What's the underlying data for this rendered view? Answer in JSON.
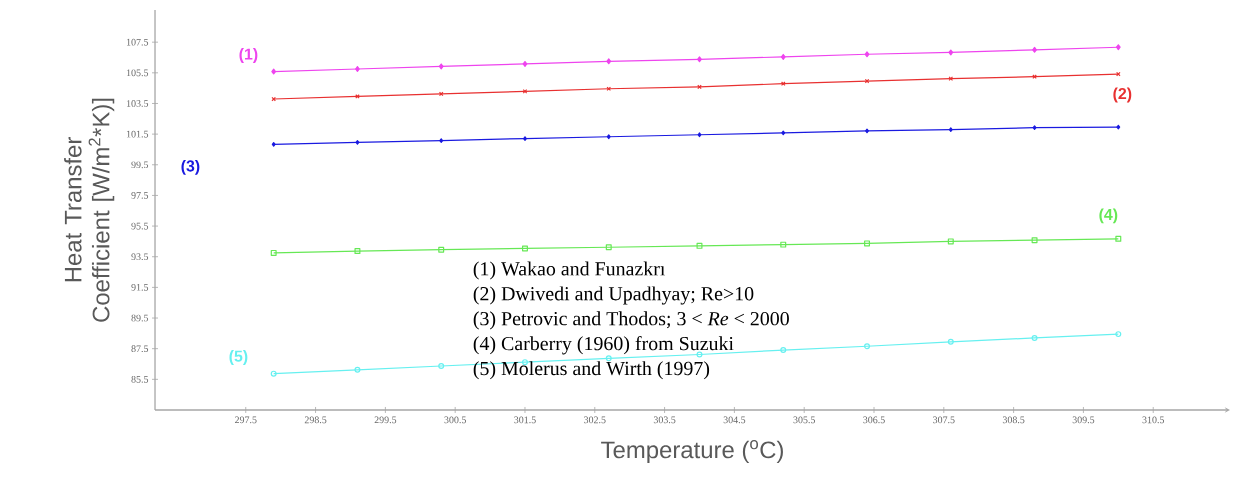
{
  "chart_data": {
    "type": "line",
    "xlabel": "Temperature ($^{o}$C)",
    "ylabel": "Heat Transfer Coefficient [W/m$^{2}$*K)]",
    "x": [
      297.9,
      299.1,
      300.3,
      301.5,
      302.7,
      304.0,
      305.2,
      306.4,
      307.6,
      308.8,
      310.0
    ],
    "series": [
      {
        "name": "(1)",
        "color": "#ee44ee",
        "marker": "diamond",
        "values": [
          105.58,
          105.75,
          105.92,
          106.08,
          106.25,
          106.38,
          106.54,
          106.71,
          106.83,
          107.0,
          107.17
        ]
      },
      {
        "name": "(2)",
        "color": "#e83030",
        "marker": "cross",
        "values": [
          103.79,
          103.96,
          104.12,
          104.29,
          104.46,
          104.58,
          104.79,
          104.96,
          105.12,
          105.25,
          105.42
        ]
      },
      {
        "name": "(3)",
        "color": "#1a1ae0",
        "marker": "diamond",
        "values": [
          100.83,
          100.96,
          101.08,
          101.21,
          101.33,
          101.46,
          101.58,
          101.71,
          101.79,
          101.92,
          101.96
        ]
      },
      {
        "name": "(4)",
        "color": "#66e855",
        "marker": "square",
        "values": [
          93.75,
          93.87,
          93.96,
          94.04,
          94.12,
          94.21,
          94.29,
          94.37,
          94.5,
          94.58,
          94.67
        ]
      },
      {
        "name": "(5)",
        "color": "#66f0f0",
        "marker": "circle",
        "values": [
          85.87,
          86.12,
          86.37,
          86.62,
          86.87,
          87.12,
          87.41,
          87.66,
          87.95,
          88.2,
          88.45
        ]
      }
    ],
    "annotations": [
      "(1) Wakao and Funazkrı",
      "(2) Dwivedi and Upadhyay; Re>10",
      "(3) Petrovic and Thodos;  3 < *Re* < 2000",
      "(4) Carberry (1960) from Suzuki",
      "(5) Molerus and Wirth (1997)"
    ],
    "xlim": [
      296.2,
      311.6
    ],
    "ylim": [
      83.5,
      109.6
    ],
    "xticks": [
      297.5,
      298.5,
      299.5,
      300.5,
      301.5,
      302.5,
      303.5,
      304.5,
      305.5,
      306.5,
      307.5,
      308.5,
      309.5,
      310.5
    ],
    "yticks": [
      85.5,
      87.5,
      89.5,
      91.5,
      93.5,
      95.5,
      97.5,
      99.5,
      101.5,
      103.5,
      105.5,
      107.5
    ]
  }
}
